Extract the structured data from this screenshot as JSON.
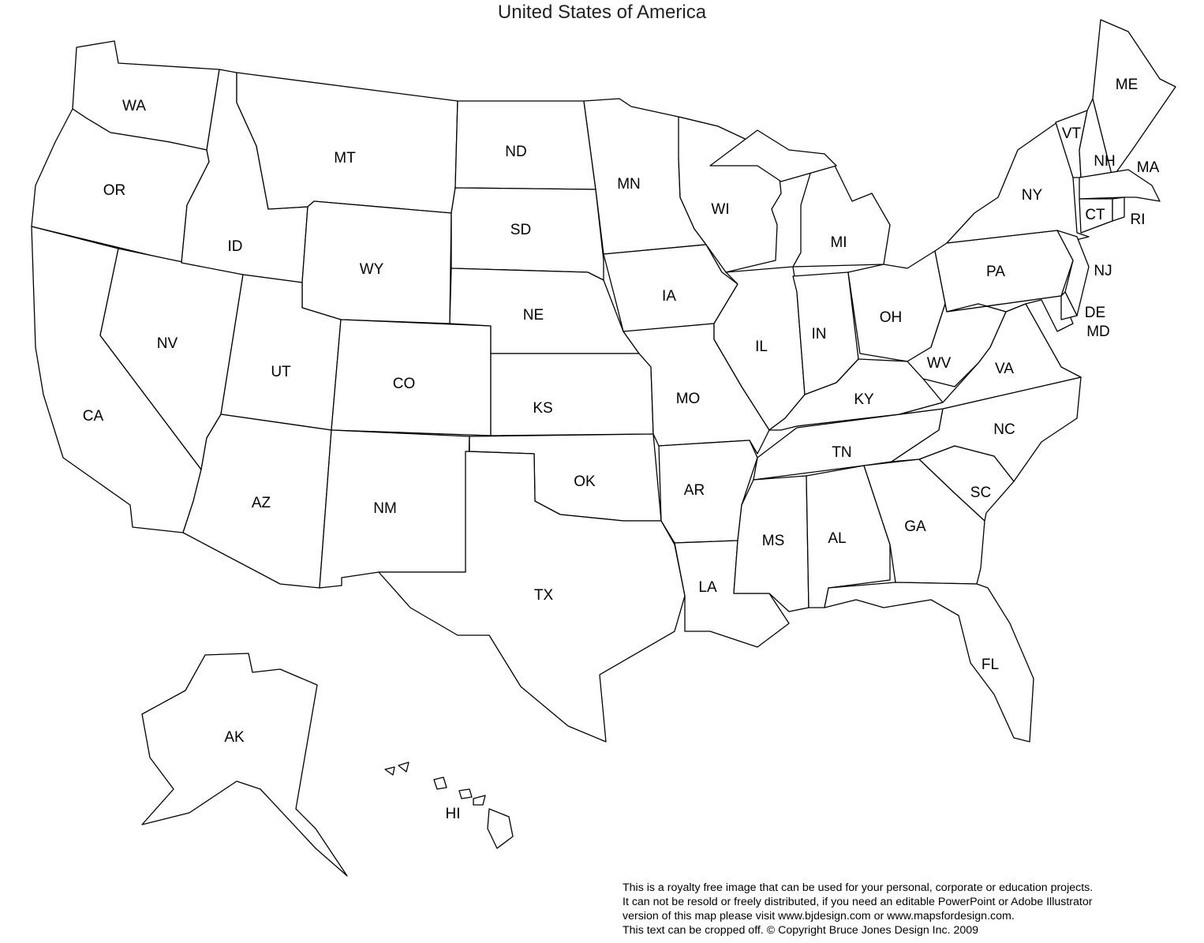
{
  "title": "United States of America",
  "states": [
    "WA",
    "OR",
    "CA",
    "NV",
    "ID",
    "MT",
    "WY",
    "UT",
    "CO",
    "AZ",
    "NM",
    "ND",
    "SD",
    "NE",
    "KS",
    "OK",
    "TX",
    "MN",
    "IA",
    "MO",
    "AR",
    "LA",
    "WI",
    "IL",
    "MI",
    "IN",
    "OH",
    "KY",
    "TN",
    "MS",
    "AL",
    "GA",
    "FL",
    "SC",
    "NC",
    "VA",
    "WV",
    "PA",
    "NY",
    "NJ",
    "MD",
    "DE",
    "VT",
    "NH",
    "ME",
    "MA",
    "CT",
    "RI",
    "AK",
    "HI"
  ],
  "footer": {
    "line1": "This is a royalty free image that can be used for your personal, corporate or education projects.",
    "line2": "It can not be resold or freely distributed, if you need an editable PowerPoint or Adobe Illustrator",
    "line3": "version of this map please visit www.bjdesign.com or www.mapsfordesign.com.",
    "line4": "This text can be cropped off.  © Copyright Bruce Jones Design Inc. 2009"
  },
  "colors": {
    "fill": "#ffffff",
    "stroke": "#000000"
  }
}
